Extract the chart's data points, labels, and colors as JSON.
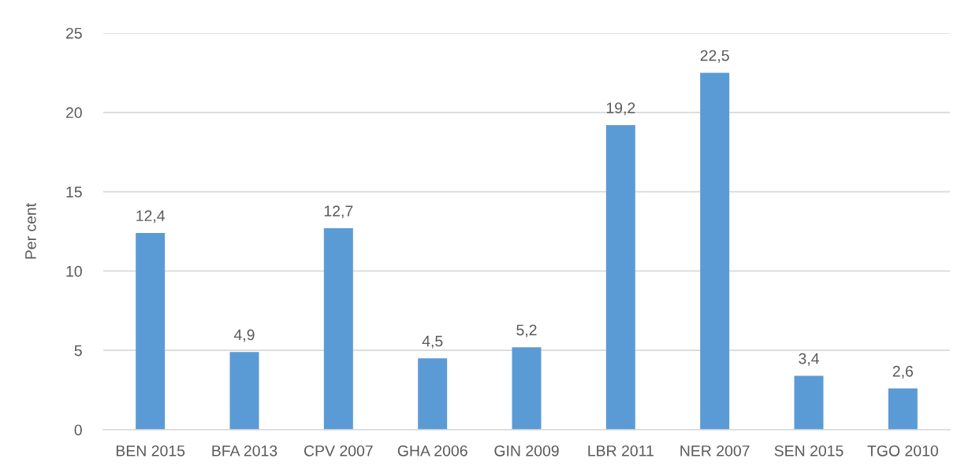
{
  "chart_data": {
    "type": "bar",
    "ylabel": "Per cent",
    "categories": [
      "BEN 2015",
      "BFA 2013",
      "CPV 2007",
      "GHA 2006",
      "GIN 2009",
      "LBR 2011",
      "NER 2007",
      "SEN 2015",
      "TGO 2010"
    ],
    "values": [
      12.4,
      4.9,
      12.7,
      4.5,
      5.2,
      19.2,
      22.5,
      3.4,
      2.6
    ],
    "value_labels": [
      "12,4",
      "4,9",
      "12,7",
      "4,5",
      "5,2",
      "19,2",
      "22,5",
      "3,4",
      "2,6"
    ],
    "color": "#5b9bd5",
    "ylim": [
      0,
      25
    ],
    "yticks": [
      0,
      5,
      10,
      15,
      20,
      25
    ],
    "grid": "y"
  }
}
